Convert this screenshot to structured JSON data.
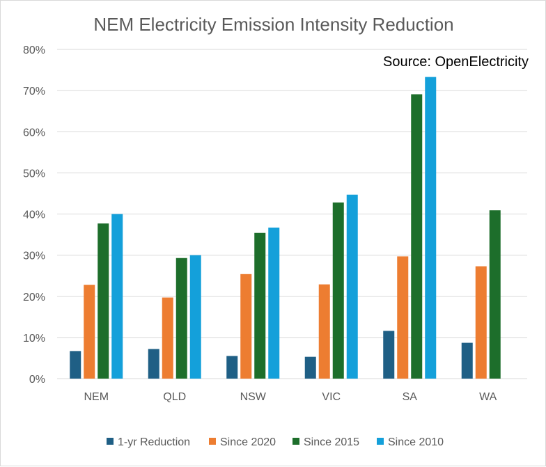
{
  "chart_data": {
    "type": "bar",
    "title": "NEM Electricity Emission Intensity Reduction",
    "annotation": "Source: OpenElectricity",
    "categories": [
      "NEM",
      "QLD",
      "NSW",
      "VIC",
      "SA",
      "WA"
    ],
    "ylim": [
      0,
      80
    ],
    "yticks": [
      "0%",
      "10%",
      "20%",
      "30%",
      "40%",
      "50%",
      "60%",
      "70%",
      "80%"
    ],
    "ytick_values": [
      0,
      10,
      20,
      30,
      40,
      50,
      60,
      70,
      80
    ],
    "grid": true,
    "legend_position": "bottom",
    "series": [
      {
        "name": "1-yr Reduction",
        "color": "#1f5f85",
        "values": [
          6.7,
          7.2,
          5.5,
          5.3,
          11.6,
          8.7
        ]
      },
      {
        "name": "Since 2020",
        "color": "#ed7d31",
        "values": [
          22.8,
          19.7,
          25.4,
          22.9,
          29.7,
          27.3
        ]
      },
      {
        "name": "Since 2015",
        "color": "#1d6e2b",
        "values": [
          37.7,
          29.3,
          35.4,
          42.8,
          69.1,
          40.9
        ]
      },
      {
        "name": "Since 2010",
        "color": "#14a0da",
        "values": [
          40.0,
          30.0,
          36.7,
          44.7,
          73.3,
          null
        ]
      }
    ]
  }
}
